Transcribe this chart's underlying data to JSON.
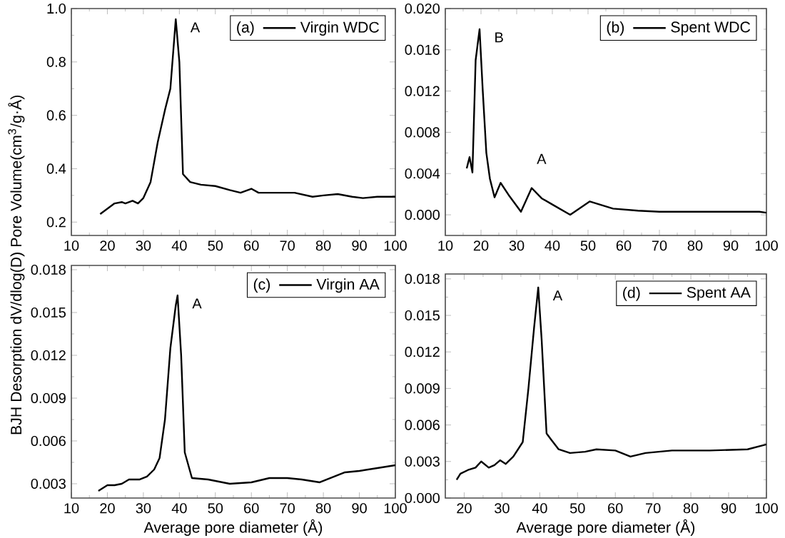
{
  "chart_data": [
    {
      "type": "line",
      "ylabel": "BJH Desorption dV/dlog(D) Pore Volume(cm$^{3}$/g·Å)",
      "legend_title": "(a)",
      "legend": "top right",
      "xlim": [
        10,
        100
      ],
      "ylim": [
        0.15,
        1.0
      ],
      "xticks": [
        10,
        20,
        30,
        40,
        50,
        60,
        70,
        80,
        90,
        100
      ],
      "yticks": [
        {
          "value": 0.2,
          "label": "0.2"
        },
        {
          "value": 0.4,
          "label": "0.4"
        },
        {
          "value": 0.6,
          "label": "0.6"
        },
        {
          "value": 0.8,
          "label": "0.8"
        },
        {
          "value": 1.0,
          "label": "1.0"
        }
      ],
      "annotations": [
        {
          "text": "A",
          "x": 39,
          "y": 0.96
        }
      ],
      "series": [
        {
          "name": "Virgin WDC",
          "color": "#000000",
          "x": [
            18,
            20,
            22,
            24,
            25,
            27,
            28.5,
            30,
            32,
            34,
            36,
            37.5,
            39,
            40,
            41,
            43,
            46,
            50,
            54,
            57,
            60,
            62,
            66,
            72,
            77,
            80,
            84,
            88,
            91,
            95,
            100
          ],
          "values": [
            0.23,
            0.25,
            0.27,
            0.275,
            0.27,
            0.28,
            0.27,
            0.29,
            0.35,
            0.5,
            0.62,
            0.7,
            0.96,
            0.8,
            0.38,
            0.35,
            0.34,
            0.335,
            0.32,
            0.31,
            0.325,
            0.31,
            0.31,
            0.31,
            0.295,
            0.3,
            0.305,
            0.295,
            0.29,
            0.295,
            0.295
          ]
        }
      ]
    },
    {
      "type": "line",
      "legend_title": "(b)",
      "legend": "top right",
      "xlim": [
        10,
        100
      ],
      "ylim": [
        -0.002,
        0.02
      ],
      "xticks": [
        10,
        20,
        30,
        40,
        50,
        60,
        70,
        80,
        90,
        100
      ],
      "yticks": [
        {
          "value": 0,
          "label": "0.000"
        },
        {
          "value": 0.004,
          "label": "0.004"
        },
        {
          "value": 0.008,
          "label": "0.008"
        },
        {
          "value": 0.012,
          "label": "0.012"
        },
        {
          "value": 0.016,
          "label": "0.016"
        },
        {
          "value": 0.02,
          "label": "0.020"
        }
      ],
      "annotations": [
        {
          "text": "B",
          "x": 19.6,
          "y": 0.018
        },
        {
          "text": "A",
          "x": 34.2,
          "y": 0.0026
        }
      ],
      "series": [
        {
          "name": "Spent WDC",
          "color": "#000000",
          "x": [
            16,
            16.8,
            17.6,
            18.5,
            19.6,
            20.5,
            21.5,
            22.5,
            23.8,
            25.5,
            28,
            31.2,
            34.2,
            37,
            40,
            45,
            50.5,
            57,
            64,
            70,
            80,
            90,
            98,
            100
          ],
          "values": [
            0.0045,
            0.0056,
            0.0041,
            0.015,
            0.018,
            0.012,
            0.006,
            0.0035,
            0.0017,
            0.0031,
            0.0018,
            0.0003,
            0.0026,
            0.0016,
            0.001,
            0.0,
            0.0013,
            0.0006,
            0.0004,
            0.0003,
            0.0003,
            0.0003,
            0.0003,
            0.0002
          ]
        }
      ]
    },
    {
      "type": "line",
      "xlabel": "Average pore diameter (Å)",
      "legend_title": "(c)",
      "legend": "top right",
      "xlim": [
        10,
        100
      ],
      "ylim": [
        0.002,
        0.0183
      ],
      "xticks": [
        10,
        20,
        30,
        40,
        50,
        60,
        70,
        80,
        90,
        100
      ],
      "yticks": [
        {
          "value": 0.003,
          "label": "0.003"
        },
        {
          "value": 0.006,
          "label": "0.006"
        },
        {
          "value": 0.009,
          "label": "0.009"
        },
        {
          "value": 0.012,
          "label": "0.012"
        },
        {
          "value": 0.015,
          "label": "0.015"
        },
        {
          "value": 0.018,
          "label": "0.018"
        }
      ],
      "annotations": [
        {
          "text": "A",
          "x": 39.5,
          "y": 0.0162
        }
      ],
      "series": [
        {
          "name": "Virgin AA",
          "color": "#000000",
          "x": [
            17.5,
            20,
            22,
            24,
            26,
            29,
            31,
            33,
            34.5,
            36,
            37.5,
            39,
            39.5,
            40.5,
            41.5,
            43.5,
            48,
            54,
            60,
            65,
            70,
            74,
            79,
            82,
            86,
            90,
            95,
            100
          ],
          "values": [
            0.0025,
            0.0029,
            0.0029,
            0.003,
            0.0033,
            0.0033,
            0.0035,
            0.004,
            0.0048,
            0.0075,
            0.0125,
            0.0155,
            0.0162,
            0.012,
            0.0052,
            0.0034,
            0.0033,
            0.003,
            0.0031,
            0.0034,
            0.0034,
            0.0033,
            0.0031,
            0.0034,
            0.0038,
            0.0039,
            0.0041,
            0.0043
          ]
        }
      ]
    },
    {
      "type": "line",
      "xlabel": "Average pore diameter (Å)",
      "legend_title": "(d)",
      "legend": "top right",
      "xlim": [
        15,
        100
      ],
      "ylim": [
        0,
        0.0184
      ],
      "xticks": [
        20,
        30,
        40,
        50,
        60,
        70,
        80,
        90,
        100
      ],
      "yticks": [
        {
          "value": 0,
          "label": "0.000"
        },
        {
          "value": 0.003,
          "label": "0.003"
        },
        {
          "value": 0.006,
          "label": "0.006"
        },
        {
          "value": 0.009,
          "label": "0.009"
        },
        {
          "value": 0.012,
          "label": "0.012"
        },
        {
          "value": 0.015,
          "label": "0.015"
        },
        {
          "value": 0.018,
          "label": "0.018"
        }
      ],
      "annotations": [
        {
          "text": "A",
          "x": 39.6,
          "y": 0.0173
        }
      ],
      "series": [
        {
          "name": "Spent AA",
          "color": "#000000",
          "x": [
            18,
            19,
            21,
            23,
            24.5,
            26.5,
            28,
            29.5,
            31,
            33,
            35.5,
            37,
            38.5,
            39.6,
            40.5,
            41.8,
            43,
            45,
            48,
            52,
            55,
            60,
            64,
            68,
            75,
            85,
            95,
            100
          ],
          "values": [
            0.0015,
            0.002,
            0.0023,
            0.0025,
            0.003,
            0.0025,
            0.0027,
            0.0031,
            0.0028,
            0.0034,
            0.0046,
            0.009,
            0.014,
            0.0173,
            0.013,
            0.0053,
            0.0048,
            0.004,
            0.0037,
            0.0038,
            0.004,
            0.0039,
            0.0034,
            0.0037,
            0.0039,
            0.0039,
            0.004,
            0.0044
          ]
        }
      ]
    }
  ]
}
